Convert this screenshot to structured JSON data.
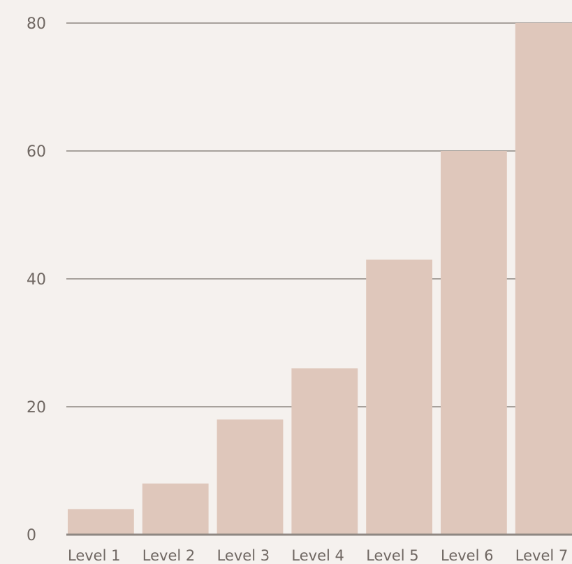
{
  "chart_data": {
    "type": "bar",
    "categories": [
      "Level 1",
      "Level 2",
      "Level 3",
      "Level 4",
      "Level 5",
      "Level 6",
      "Level 7"
    ],
    "values": [
      4,
      8,
      18,
      26,
      43,
      60,
      80
    ],
    "title": "",
    "xlabel": "",
    "ylabel": "",
    "ylim": [
      0,
      80
    ],
    "yticks": [
      0,
      20,
      40,
      60,
      80
    ],
    "grid": true,
    "legend": "none",
    "bar_color": "#dfc7bb",
    "background_color": "#f5f1ee"
  }
}
